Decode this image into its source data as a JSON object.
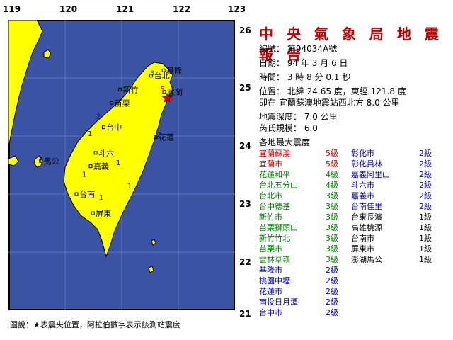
{
  "title": "中 央 氣 象 局 地 震 報 告",
  "axes": {
    "lon_ticks": [
      "119",
      "120",
      "121",
      "122",
      "123"
    ],
    "lat_ticks": [
      "26",
      "25",
      "24",
      "23",
      "22",
      "21"
    ]
  },
  "report": {
    "number": "編號： 第94034A號",
    "date": "日期： 94 年 3 月 6 日",
    "time": "時間： 3 時 8 分 0.1 秒",
    "position": "位置： 北緯 24.65 度，東經 121.8 度",
    "relative": "即在 宜蘭蘇澳地震站西北方 8.0 公里",
    "depth": "地震深度： 7.0 公里",
    "magnitude": "芮氏規模： 6.0",
    "intensity_heading": "各地最大震度"
  },
  "intensities_left": [
    {
      "station": "宜蘭蘇澳",
      "level": "5級",
      "color": "#d00000"
    },
    {
      "station": "宜蘭市",
      "level": "5級",
      "color": "#d00000"
    },
    {
      "station": "花蓮和平",
      "level": "4級",
      "color": "#008000"
    },
    {
      "station": "台北五分山",
      "level": "4級",
      "color": "#008000"
    },
    {
      "station": "台北市",
      "level": "3級",
      "color": "#008000"
    },
    {
      "station": "台中德基",
      "level": "3級",
      "color": "#008000"
    },
    {
      "station": "新竹市",
      "level": "3級",
      "color": "#008000"
    },
    {
      "station": "苗栗獅頭山",
      "level": "3級",
      "color": "#008000"
    },
    {
      "station": "新竹竹北",
      "level": "3級",
      "color": "#008000"
    },
    {
      "station": "苗栗市",
      "level": "3級",
      "color": "#008000"
    },
    {
      "station": "雲林草嶺",
      "level": "3級",
      "color": "#008000"
    },
    {
      "station": "基隆市",
      "level": "2級",
      "color": "#0000c0"
    },
    {
      "station": "桃園中壢",
      "level": "2級",
      "color": "#0000c0"
    },
    {
      "station": "花蓮市",
      "level": "2級",
      "color": "#0000c0"
    },
    {
      "station": "南投日月潭",
      "level": "2級",
      "color": "#0000c0"
    },
    {
      "station": "台中市",
      "level": "2級",
      "color": "#0000c0"
    }
  ],
  "intensities_right": [
    {
      "station": "彰化市",
      "level": "2級",
      "color": "#0000c0"
    },
    {
      "station": "彰化員林",
      "level": "2級",
      "color": "#0000c0"
    },
    {
      "station": "嘉義阿里山",
      "level": "2級",
      "color": "#0000c0"
    },
    {
      "station": "斗六市",
      "level": "2級",
      "color": "#0000c0"
    },
    {
      "station": "嘉義市",
      "level": "2級",
      "color": "#0000c0"
    },
    {
      "station": "台南佳里",
      "level": "2級",
      "color": "#0000c0"
    },
    {
      "station": "台東長濱",
      "level": "1級",
      "color": "#000000"
    },
    {
      "station": "高雄桃源",
      "level": "1級",
      "color": "#000000"
    },
    {
      "station": "台南市",
      "level": "1級",
      "color": "#000000"
    },
    {
      "station": "屏東市",
      "level": "1級",
      "color": "#000000"
    },
    {
      "station": "澎湖馬公",
      "level": "1級",
      "color": "#000000"
    }
  ],
  "map": {
    "epicenter": {
      "lat": 24.65,
      "lon": 121.8
    },
    "cities": [
      {
        "name": "基隆",
        "lon": 121.74,
        "lat": 25.13
      },
      {
        "name": "台北",
        "lon": 121.52,
        "lat": 25.04
      },
      {
        "name": "宜蘭",
        "lon": 121.75,
        "lat": 24.76
      },
      {
        "name": "新竹",
        "lon": 120.97,
        "lat": 24.8
      },
      {
        "name": "苗栗",
        "lon": 120.82,
        "lat": 24.57
      },
      {
        "name": "台中",
        "lon": 120.68,
        "lat": 24.15
      },
      {
        "name": "花蓮",
        "lon": 121.6,
        "lat": 23.98
      },
      {
        "name": "斗六",
        "lon": 120.54,
        "lat": 23.71
      },
      {
        "name": "嘉義",
        "lon": 120.45,
        "lat": 23.48
      },
      {
        "name": "台南",
        "lon": 120.2,
        "lat": 23.0
      },
      {
        "name": "屏東",
        "lon": 120.49,
        "lat": 22.67
      },
      {
        "name": "馬公",
        "lon": 119.57,
        "lat": 23.57
      }
    ],
    "intensity_marks": [
      {
        "v": "5",
        "lon": 121.83,
        "lat": 24.6,
        "color": "#d00000"
      },
      {
        "v": "5",
        "lon": 121.68,
        "lat": 24.77,
        "color": "#d00000"
      },
      {
        "v": "4",
        "lon": 121.7,
        "lat": 24.35,
        "color": "#008000"
      },
      {
        "v": "3",
        "lon": 121.5,
        "lat": 25.04,
        "color": "#008000"
      },
      {
        "v": "3",
        "lon": 121.02,
        "lat": 24.81,
        "color": "#008000"
      },
      {
        "v": "2",
        "lon": 121.62,
        "lat": 23.98,
        "color": "#0000c0"
      },
      {
        "v": "2",
        "lon": 120.55,
        "lat": 24.3,
        "color": "#0000c0"
      },
      {
        "v": "1",
        "lon": 120.4,
        "lat": 24.0,
        "color": "#000000"
      },
      {
        "v": "1",
        "lon": 120.3,
        "lat": 23.3,
        "color": "#000000"
      },
      {
        "v": "1",
        "lon": 120.6,
        "lat": 22.9,
        "color": "#000000"
      },
      {
        "v": "1",
        "lon": 120.9,
        "lat": 23.5,
        "color": "#000000"
      },
      {
        "v": "1",
        "lon": 121.1,
        "lat": 23.1,
        "color": "#000000"
      },
      {
        "v": "1",
        "lon": 119.53,
        "lat": 23.55,
        "color": "#000000"
      }
    ]
  },
  "legend": "圖說：★表震央位置，阿拉伯數字表示該測站震度",
  "colors": {
    "sea": "#3b53a5",
    "land": "#ffff00",
    "epicenter": "#e00000",
    "title": "#c00000"
  }
}
